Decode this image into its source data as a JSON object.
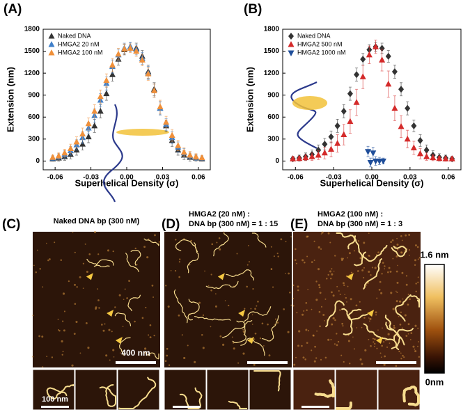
{
  "chart_data": [
    {
      "type": "scatter",
      "panel": "(A)",
      "xlabel": "Superhelical Density (σ)",
      "ylabel": "Extension (nm)",
      "xlim": [
        -0.07,
        0.07
      ],
      "ylim": [
        -120,
        1800
      ],
      "xticks": [
        -0.06,
        -0.03,
        {
          "value": 0,
          "label": "0.00"
        },
        0.03,
        0.06
      ],
      "yticks": [
        0,
        300,
        600,
        900,
        1200,
        1500,
        1800
      ],
      "legend": "upper left",
      "x": [
        -0.062,
        -0.057,
        -0.052,
        -0.047,
        -0.042,
        -0.037,
        -0.032,
        -0.027,
        -0.022,
        -0.017,
        -0.012,
        -0.007,
        -0.002,
        0.003,
        0.008,
        0.013,
        0.018,
        0.023,
        0.028,
        0.033,
        0.038,
        0.043,
        0.048,
        0.053,
        0.058,
        0.063
      ],
      "series": [
        {
          "name": "Naked DNA",
          "color": "#333333",
          "marker": "triangle",
          "values": [
            30,
            40,
            60,
            90,
            150,
            230,
            330,
            480,
            680,
            920,
            1180,
            1390,
            1520,
            1560,
            1540,
            1430,
            1220,
            980,
            720,
            480,
            280,
            150,
            80,
            50,
            40,
            30
          ],
          "errors": [
            30,
            40,
            50,
            60,
            70,
            80,
            80,
            90,
            90,
            90,
            90,
            80,
            70,
            60,
            70,
            80,
            90,
            90,
            90,
            80,
            80,
            70,
            60,
            50,
            40,
            30
          ]
        },
        {
          "name": "HMGA2 20 nM",
          "color": "#3f7fc9",
          "marker": "triangle",
          "values": [
            40,
            60,
            90,
            140,
            220,
            320,
            450,
            620,
            830,
            1060,
            1290,
            1450,
            1540,
            1560,
            1520,
            1400,
            1200,
            960,
            720,
            500,
            320,
            190,
            110,
            70,
            50,
            40
          ],
          "errors": [
            30,
            40,
            50,
            60,
            70,
            80,
            80,
            90,
            90,
            90,
            90,
            80,
            70,
            60,
            70,
            80,
            90,
            90,
            90,
            80,
            80,
            70,
            60,
            50,
            40,
            30
          ]
        },
        {
          "name": "HMGA2 100 nM",
          "color": "#f0903a",
          "marker": "triangle",
          "values": [
            50,
            70,
            110,
            170,
            260,
            370,
            510,
            680,
            880,
            1100,
            1310,
            1460,
            1530,
            1540,
            1500,
            1380,
            1190,
            960,
            740,
            530,
            350,
            210,
            120,
            80,
            60,
            45
          ],
          "errors": [
            30,
            40,
            50,
            60,
            70,
            80,
            80,
            90,
            90,
            90,
            90,
            80,
            70,
            60,
            70,
            80,
            90,
            90,
            90,
            80,
            80,
            70,
            60,
            50,
            40,
            30
          ]
        }
      ]
    },
    {
      "type": "scatter",
      "panel": "(B)",
      "xlabel": "Superhelical Density (σ)",
      "ylabel": "Extension (nm)",
      "xlim": [
        -0.07,
        0.07
      ],
      "ylim": [
        -120,
        1800
      ],
      "xticks": [
        -0.06,
        -0.03,
        {
          "value": 0,
          "label": "0.00"
        },
        0.03,
        0.06
      ],
      "yticks": [
        0,
        300,
        600,
        900,
        1200,
        1500,
        1800
      ],
      "legend": "upper left",
      "x": [
        -0.062,
        -0.057,
        -0.052,
        -0.047,
        -0.042,
        -0.037,
        -0.032,
        -0.027,
        -0.022,
        -0.017,
        -0.012,
        -0.007,
        -0.002,
        0.003,
        0.008,
        0.013,
        0.018,
        0.023,
        0.028,
        0.033,
        0.038,
        0.043,
        0.048,
        0.053,
        0.058,
        0.063
      ],
      "series": [
        {
          "name": "Naked DNA",
          "color": "#333333",
          "marker": "diamond",
          "values": [
            30,
            40,
            60,
            90,
            150,
            230,
            330,
            480,
            680,
            920,
            1180,
            1390,
            1520,
            1560,
            1540,
            1430,
            1220,
            980,
            720,
            480,
            280,
            150,
            80,
            50,
            40,
            30
          ],
          "errors": [
            30,
            40,
            50,
            60,
            70,
            80,
            80,
            90,
            90,
            90,
            90,
            80,
            70,
            60,
            70,
            80,
            90,
            90,
            90,
            80,
            80,
            70,
            60,
            50,
            40,
            30
          ]
        },
        {
          "name": "HMGA2 500 nM",
          "color": "#d42a2a",
          "marker": "triangle",
          "values": [
            30,
            35,
            45,
            60,
            80,
            110,
            160,
            240,
            360,
            540,
            800,
            1150,
            1450,
            1560,
            1380,
            1050,
            720,
            470,
            300,
            180,
            100,
            60,
            45,
            35,
            30,
            30
          ],
          "errors": [
            30,
            30,
            40,
            50,
            60,
            80,
            100,
            120,
            140,
            160,
            180,
            160,
            120,
            90,
            150,
            180,
            170,
            150,
            120,
            90,
            70,
            50,
            40,
            30,
            30,
            30
          ]
        },
        {
          "name": "HMGA2 1000 nM",
          "color": "#1f4e9a",
          "marker": "triangle-down",
          "x": [
            -0.003,
            -0.001,
            0.001,
            0.003,
            0.006,
            0.009
          ],
          "values": [
            130,
            -20,
            110,
            0,
            0,
            0
          ],
          "errors": [
            70,
            60,
            80,
            60,
            50,
            40
          ]
        }
      ]
    }
  ],
  "images": [
    {
      "panel": "(C)",
      "caption": [
        "Naked DNA bp (300 nM)"
      ],
      "scale": "400 nm",
      "inset_scale": "100 nm"
    },
    {
      "panel": "(D)",
      "caption": [
        "HMGA2 (20 nM) :",
        "DNA bp (300 nM) = 1 : 15"
      ]
    },
    {
      "panel": "(E)",
      "caption": [
        "HMGA2 (100 nM) :",
        "DNA bp (300 nM) = 1 : 3"
      ]
    }
  ],
  "colorbar": {
    "max": "1.6 nm",
    "min": "0nm"
  }
}
